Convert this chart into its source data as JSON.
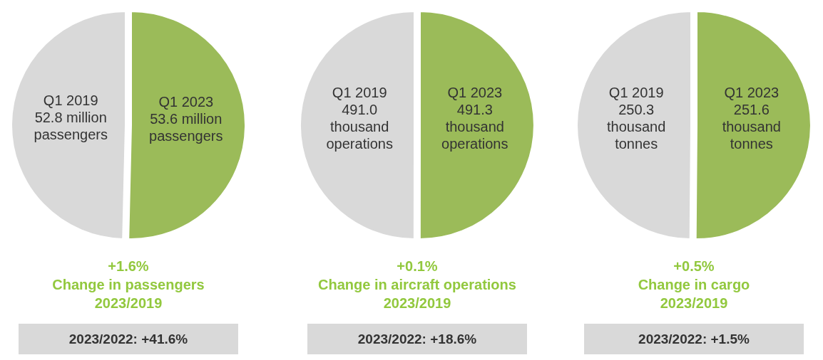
{
  "chart_data": [
    {
      "type": "pie",
      "categories": [
        "Q1 2019",
        "Q1 2023"
      ],
      "values": [
        52.8,
        53.6
      ],
      "colors": [
        "#d9d9d9",
        "#9bbb59"
      ],
      "value_labels": [
        "52.8 million passengers",
        "53.6 million passengers"
      ],
      "annotations": [
        "+1.6%",
        "Change in passengers",
        "2023/2019",
        "2023/2022: +41.6%"
      ]
    },
    {
      "type": "pie",
      "categories": [
        "Q1 2019",
        "Q1 2023"
      ],
      "values": [
        491.0,
        491.3
      ],
      "colors": [
        "#d9d9d9",
        "#9bbb59"
      ],
      "value_labels": [
        "491.0 thousand operations",
        "491.3 thousand operations"
      ],
      "annotations": [
        "+0.1%",
        "Change in aircraft operations",
        "2023/2019",
        "2023/2022: +18.6%"
      ]
    },
    {
      "type": "pie",
      "categories": [
        "Q1 2019",
        "Q1 2023"
      ],
      "values": [
        250.3,
        251.6
      ],
      "colors": [
        "#d9d9d9",
        "#9bbb59"
      ],
      "value_labels": [
        "250.3 thousand tonnes",
        "251.6 thousand tonnes"
      ],
      "annotations": [
        "+0.5%",
        "Change in cargo",
        "2023/2019",
        "2023/2022: +1.5%"
      ]
    }
  ]
}
